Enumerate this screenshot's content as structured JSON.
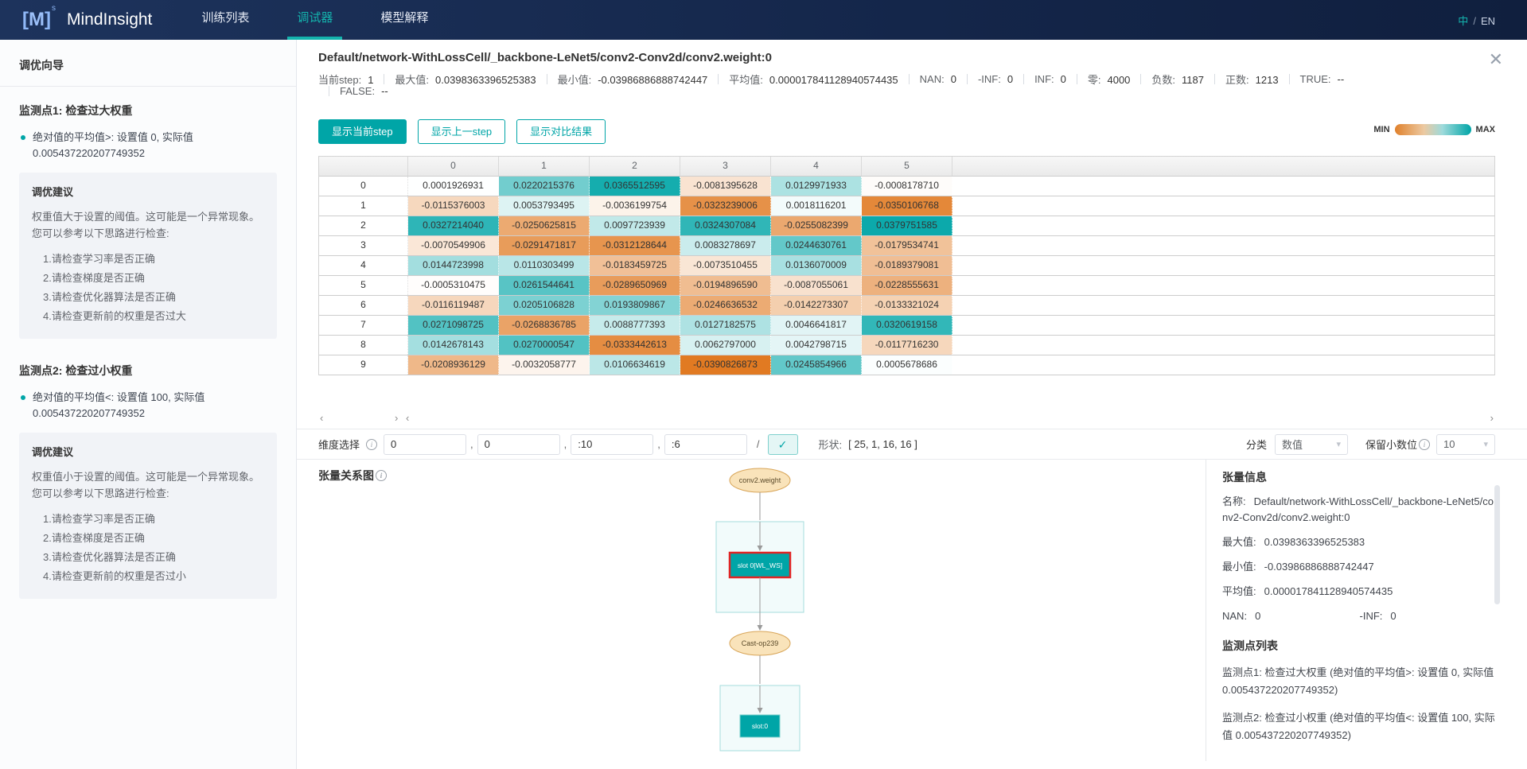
{
  "navbar": {
    "logo_bracket_left": "[",
    "logo_m": "M",
    "logo_bracket_right": "]",
    "logo_sup": "s",
    "brand": "MindInsight",
    "tabs": [
      {
        "label": "训练列表",
        "active": false
      },
      {
        "label": "调试器",
        "active": true
      },
      {
        "label": "模型解释",
        "active": false
      }
    ],
    "lang_zh": "中",
    "lang_sep": "/",
    "lang_en": "EN"
  },
  "sidebar": {
    "title": "调优向导",
    "collapse_icon": "‹",
    "watchpoints": [
      {
        "title": "监测点1: 检查过大权重",
        "condition": "绝对值的平均值>: 设置值 0, 实际值 0.005437220207749352",
        "advice_title": "调优建议",
        "advice_text": "权重值大于设置的阈值。这可能是一个异常现象。您可以参考以下思路进行检查:",
        "items": [
          "1.请检查学习率是否正确",
          "2.请检查梯度是否正确",
          "3.请检查优化器算法是否正确",
          "4.请检查更新前的权重是否过大"
        ]
      },
      {
        "title": "监测点2: 检查过小权重",
        "condition": "绝对值的平均值<: 设置值 100, 实际值 0.005437220207749352",
        "advice_title": "调优建议",
        "advice_text": "权重值小于设置的阈值。这可能是一个异常现象。您可以参考以下思路进行检查:",
        "items": [
          "1.请检查学习率是否正确",
          "2.请检查梯度是否正确",
          "3.请检查优化器算法是否正确",
          "4.请检查更新前的权重是否过小"
        ]
      }
    ]
  },
  "header": {
    "title": "Default/network-WithLossCell/_backbone-LeNet5/conv2-Conv2d/conv2.weight:0",
    "close_icon": "✕",
    "stats": [
      {
        "label": "当前step:",
        "value": "1"
      },
      {
        "label": "最大值:",
        "value": "0.0398363396525383"
      },
      {
        "label": "最小值:",
        "value": "-0.03986886888742447"
      },
      {
        "label": "平均值:",
        "value": "0.000017841128940574435"
      },
      {
        "label": "NAN:",
        "value": "0"
      },
      {
        "label": "-INF:",
        "value": "0"
      },
      {
        "label": "INF:",
        "value": "0"
      },
      {
        "label": "零:",
        "value": "4000"
      },
      {
        "label": "负数:",
        "value": "1187"
      },
      {
        "label": "正数:",
        "value": "1213"
      },
      {
        "label": "TRUE:",
        "value": "--"
      }
    ],
    "stats_line2": [
      {
        "label": "FALSE:",
        "value": "--"
      }
    ]
  },
  "toolbar": {
    "buttons": [
      {
        "label": "显示当前step",
        "active": true
      },
      {
        "label": "显示上一step",
        "active": false
      },
      {
        "label": "显示对比结果",
        "active": false
      }
    ],
    "legend": {
      "min_label": "MIN",
      "max_label": "MAX"
    }
  },
  "tensor_table": {
    "columns": [
      "0",
      "1",
      "2",
      "3",
      "4",
      "5"
    ],
    "row_labels": [
      "0",
      "1",
      "2",
      "3",
      "4",
      "5",
      "6",
      "7",
      "8",
      "9"
    ],
    "max_abs": 0.0399,
    "values": [
      [
        "0.0001926931",
        "0.0220215376",
        "0.0365512595",
        "-0.0081395628",
        "0.0129971933",
        "-0.0008178710"
      ],
      [
        "-0.0115376003",
        "0.0053793495",
        "-0.0036199754",
        "-0.0323239006",
        "0.0018116201",
        "-0.0350106768"
      ],
      [
        "0.0327214040",
        "-0.0250625815",
        "0.0097723939",
        "0.0324307084",
        "-0.0255082399",
        "0.0379751585"
      ],
      [
        "-0.0070549906",
        "-0.0291471817",
        "-0.0312128644",
        "0.0083278697",
        "0.0244630761",
        "-0.0179534741"
      ],
      [
        "0.0144723998",
        "0.0110303499",
        "-0.0183459725",
        "-0.0073510455",
        "0.0136070009",
        "-0.0189379081"
      ],
      [
        "-0.0005310475",
        "0.0261544641",
        "-0.0289650969",
        "-0.0194896590",
        "-0.0087055061",
        "-0.0228555631"
      ],
      [
        "-0.0116119487",
        "0.0205106828",
        "0.0193809867",
        "-0.0246636532",
        "-0.0142273307",
        "-0.0133321024"
      ],
      [
        "0.0271098725",
        "-0.0268836785",
        "0.0088777393",
        "0.0127182575",
        "0.0046641817",
        "0.0320619158"
      ],
      [
        "0.0142678143",
        "0.0270000547",
        "-0.0333442613",
        "0.0062797000",
        "0.0042798715",
        "-0.0117716230"
      ],
      [
        "-0.0208936129",
        "-0.0032058777",
        "0.0106634619",
        "-0.0390826873",
        "0.0245854966",
        "0.0005678686"
      ]
    ]
  },
  "scrollbar": {
    "left": "‹",
    "right": "›"
  },
  "dimension_bar": {
    "label": "维度选择",
    "inputs": [
      "0",
      "0",
      ":10",
      ":6"
    ],
    "separator": ",",
    "slash": "/",
    "confirm_icon": "✓",
    "shape_label": "形状:",
    "shape_value": "[ 25, 1, 16, 16 ]",
    "category_label": "分类",
    "category_value": "数值",
    "decimal_label": "保留小数位",
    "decimal_value": "10",
    "caret": "▾"
  },
  "graph": {
    "title": "张量关系图",
    "param_node": "conv2.weight",
    "slot_node": "slot 0[WL_WS]",
    "cast_node": "Cast-op239",
    "slot2_node": "slot:0"
  },
  "info_panel": {
    "title": "张量信息",
    "rows": [
      {
        "label": "名称:",
        "value": "Default/network-WithLossCell/_backbone-LeNet5/conv2-Conv2d/conv2.weight:0"
      },
      {
        "label": "最大值:",
        "value": "0.0398363396525383"
      },
      {
        "label": "最小值:",
        "value": "-0.03986886888742447"
      },
      {
        "label": "平均值:",
        "value": "0.000017841128940574435"
      }
    ],
    "nan_label": "NAN:",
    "nan_value": "0",
    "ninf_label": "-INF:",
    "ninf_value": "0",
    "watch_title": "监测点列表",
    "watch_items": [
      "监测点1: 检查过大权重 (绝对值的平均值>: 设置值 0, 实际值 0.005437220207749352)",
      "监测点2: 检查过小权重 (绝对值的平均值<: 设置值 100, 实际值 0.005437220207749352)"
    ]
  },
  "colors": {
    "accent": "#00a5a7",
    "positive_max": "#00a5a7",
    "negative_max": "#e0771d",
    "selected_border": "#e02525",
    "navbar": "#16294c"
  }
}
